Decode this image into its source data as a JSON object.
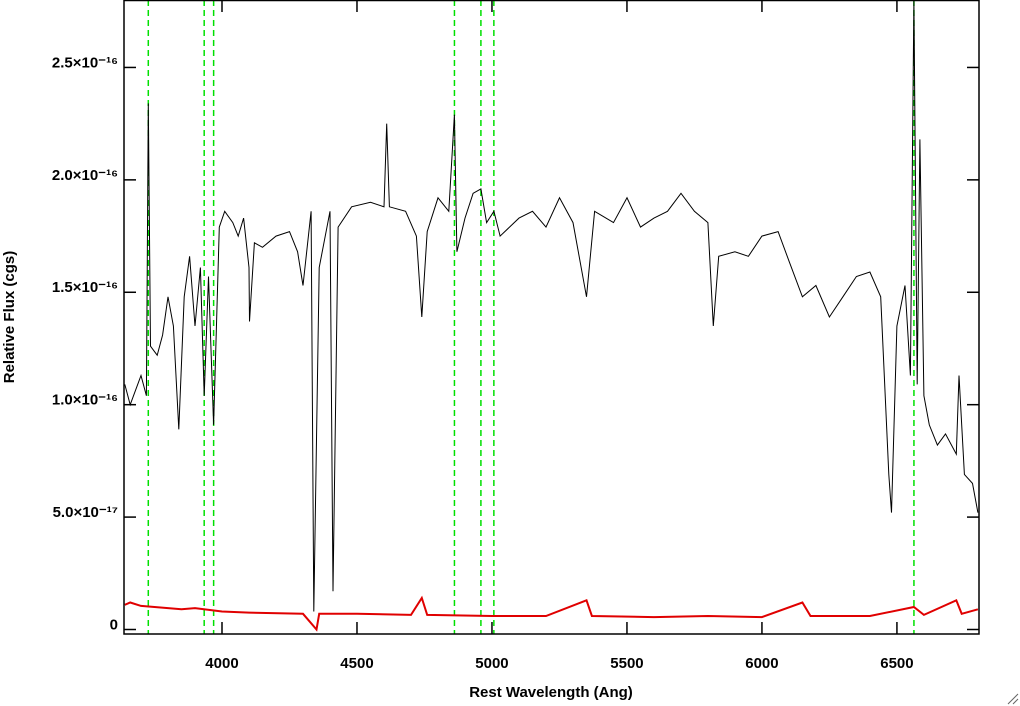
{
  "chart_data": {
    "type": "line",
    "xlabel": "Rest Wavelength (Ang)",
    "ylabel": "Relative Flux (cgs)",
    "xlim": [
      3637,
      6804
    ],
    "ylim": [
      -2e-18,
      2.8e-16
    ],
    "xticks": [
      4000,
      4500,
      5000,
      5500,
      6000,
      6500
    ],
    "yticks": [
      0,
      {
        "value": 5e-17,
        "label": "5.0×10⁻¹⁷"
      },
      {
        "value": 1e-16,
        "label": "1.0×10⁻¹⁶"
      },
      {
        "value": 1.5e-16,
        "label": "1.5×10⁻¹⁶"
      },
      {
        "value": 2e-16,
        "label": "2.0×10⁻¹⁶"
      },
      {
        "value": 2.5e-16,
        "label": "2.5×10⁻¹⁶"
      }
    ],
    "vlines": [
      3727,
      3934,
      3969,
      4861,
      4959,
      5007,
      6563
    ],
    "vline_color": "#00e000",
    "series": [
      {
        "color": "#000000",
        "x": [
          3640,
          3660,
          3700,
          3720,
          3727,
          3735,
          3760,
          3780,
          3800,
          3820,
          3840,
          3860,
          3880,
          3900,
          3920,
          3934,
          3950,
          3969,
          3990,
          4010,
          4040,
          4060,
          4080,
          4100,
          4102,
          4120,
          4150,
          4200,
          4250,
          4280,
          4300,
          4330,
          4340,
          4360,
          4400,
          4411,
          4430,
          4480,
          4550,
          4600,
          4610,
          4620,
          4680,
          4720,
          4740,
          4760,
          4800,
          4840,
          4861,
          4870,
          4900,
          4930,
          4959,
          4980,
          5007,
          5030,
          5100,
          5150,
          5200,
          5250,
          5300,
          5350,
          5380,
          5450,
          5500,
          5550,
          5600,
          5650,
          5700,
          5750,
          5800,
          5820,
          5840,
          5900,
          5950,
          6000,
          6060,
          6100,
          6150,
          6200,
          6250,
          6300,
          6350,
          6400,
          6440,
          6470,
          6480,
          6500,
          6530,
          6550,
          6563,
          6575,
          6585,
          6600,
          6620,
          6650,
          6680,
          6720,
          6730,
          6750,
          6780,
          6800
        ],
        "values": [
          1.09e-16,
          1e-16,
          1.13e-16,
          1.04e-16,
          2.34e-16,
          1.26e-16,
          1.22e-16,
          1.31e-16,
          1.48e-16,
          1.35e-16,
          8.9e-17,
          1.48e-16,
          1.66e-16,
          1.35e-16,
          1.61e-16,
          1.04e-16,
          1.57e-16,
          9.1e-17,
          1.79e-16,
          1.86e-16,
          1.81e-16,
          1.75e-16,
          1.83e-16,
          1.61e-16,
          1.37e-16,
          1.72e-16,
          1.7e-16,
          1.75e-16,
          1.77e-16,
          1.68e-16,
          1.53e-16,
          1.86e-16,
          8e-18,
          1.61e-16,
          1.86e-16,
          1.7e-17,
          1.79e-16,
          1.88e-16,
          1.9e-16,
          1.88e-16,
          2.25e-16,
          1.88e-16,
          1.86e-16,
          1.75e-16,
          1.39e-16,
          1.77e-16,
          1.92e-16,
          1.86e-16,
          2.29e-16,
          1.68e-16,
          1.83e-16,
          1.94e-16,
          1.96e-16,
          1.81e-16,
          1.86e-16,
          1.75e-16,
          1.83e-16,
          1.86e-16,
          1.79e-16,
          1.92e-16,
          1.81e-16,
          1.48e-16,
          1.86e-16,
          1.81e-16,
          1.92e-16,
          1.79e-16,
          1.83e-16,
          1.86e-16,
          1.94e-16,
          1.86e-16,
          1.81e-16,
          1.35e-16,
          1.66e-16,
          1.68e-16,
          1.66e-16,
          1.75e-16,
          1.77e-16,
          1.64e-16,
          1.48e-16,
          1.53e-16,
          1.39e-16,
          1.48e-16,
          1.57e-16,
          1.59e-16,
          1.48e-16,
          6.9e-17,
          5.2e-17,
          1.35e-16,
          1.53e-16,
          1.13e-16,
          2.8e-16,
          1.09e-16,
          2.18e-16,
          1.04e-16,
          9.1e-17,
          8.2e-17,
          8.7e-17,
          7.8e-17,
          1.13e-16,
          6.9e-17,
          6.5e-17,
          5.2e-17
        ]
      },
      {
        "color": "#e00000",
        "x": [
          3640,
          3660,
          3700,
          3750,
          3850,
          3900,
          4000,
          4100,
          4300,
          4350,
          4360,
          4500,
          4700,
          4740,
          4760,
          5000,
          5200,
          5350,
          5370,
          5600,
          5800,
          6000,
          6150,
          6180,
          6400,
          6563,
          6600,
          6720,
          6740,
          6800
        ],
        "values": [
          1.1e-17,
          1.2e-17,
          1.05e-17,
          1e-17,
          9e-18,
          9.5e-18,
          8e-18,
          7.5e-18,
          7e-18,
          0.0,
          7e-18,
          7e-18,
          6.5e-18,
          1.4e-17,
          6.5e-18,
          6e-18,
          6e-18,
          1.3e-17,
          6e-18,
          5.5e-18,
          6e-18,
          5.5e-18,
          1.2e-17,
          6e-18,
          6e-18,
          1e-17,
          6.5e-18,
          1.3e-17,
          7e-18,
          9e-18
        ]
      }
    ]
  }
}
